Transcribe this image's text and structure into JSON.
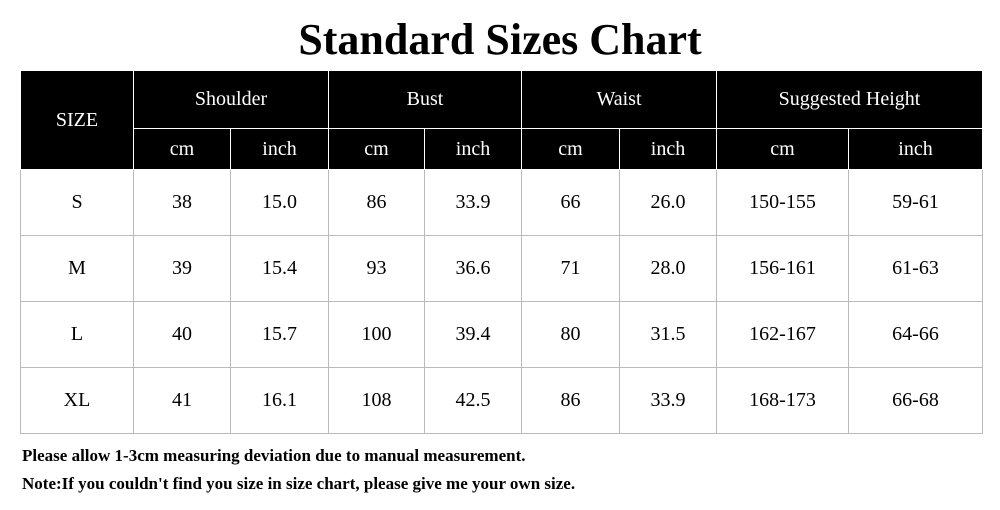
{
  "header": {
    "title": "Standard Sizes Chart"
  },
  "table": {
    "size_label": "SIZE",
    "groups": [
      "Shoulder",
      "Bust",
      "Waist",
      "Suggested Height"
    ],
    "units": [
      "cm",
      "inch",
      "cm",
      "inch",
      "cm",
      "inch",
      "cm",
      "inch"
    ],
    "rows": [
      [
        "S",
        "38",
        "15.0",
        "86",
        "33.9",
        "66",
        "26.0",
        "150-155",
        "59-61"
      ],
      [
        "M",
        "39",
        "15.4",
        "93",
        "36.6",
        "71",
        "28.0",
        "156-161",
        "61-63"
      ],
      [
        "L",
        "40",
        "15.7",
        "100",
        "39.4",
        "80",
        "31.5",
        "162-167",
        "64-66"
      ],
      [
        "XL",
        "41",
        "16.1",
        "108",
        "42.5",
        "86",
        "33.9",
        "168-173",
        "66-68"
      ]
    ]
  },
  "notes": [
    "Please allow 1-3cm measuring deviation due to manual measurement.",
    "Note:If you couldn't find you size in size chart, please give me your own size."
  ]
}
